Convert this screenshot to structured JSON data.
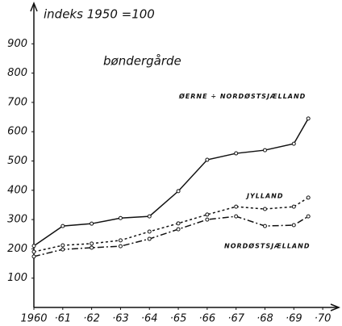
{
  "chart_data": {
    "type": "line",
    "title": "bøndergårde",
    "y_label": "indeks 1950 =100",
    "xlim": [
      1960,
      1970.5
    ],
    "ylim": [
      0,
      1000
    ],
    "xticks": [
      {
        "value": 1960,
        "label": "1960"
      },
      {
        "value": 1961,
        "label": "·61"
      },
      {
        "value": 1962,
        "label": "·62"
      },
      {
        "value": 1963,
        "label": "·63"
      },
      {
        "value": 1964,
        "label": "·64"
      },
      {
        "value": 1965,
        "label": "·65"
      },
      {
        "value": 1966,
        "label": "·66"
      },
      {
        "value": 1967,
        "label": "·67"
      },
      {
        "value": 1968,
        "label": "·68"
      },
      {
        "value": 1969,
        "label": "·69"
      },
      {
        "value": 1970,
        "label": "·70"
      }
    ],
    "yticks": [
      100,
      200,
      300,
      400,
      500,
      600,
      700,
      800,
      900
    ],
    "x": [
      1960,
      1961,
      1962,
      1963,
      1964,
      1965,
      1966,
      1967,
      1968,
      1969,
      1969.5
    ],
    "series": [
      {
        "name": "NORDØSTSJÆLLAND",
        "color": "#111111",
        "dash": "none",
        "values": [
          210,
          278,
          286,
          305,
          311,
          397,
          504,
          526,
          537,
          559,
          645
        ]
      },
      {
        "name": "JYLLAND",
        "color": "#111111",
        "dash": "3 3",
        "values": [
          190,
          212,
          218,
          229,
          259,
          287,
          317,
          344,
          336,
          344,
          375
        ]
      },
      {
        "name": "ØERNE ÷ NORDØSTSJÆLLAND",
        "color": "#111111",
        "dash": "8 3 2 3",
        "values": [
          174,
          198,
          204,
          209,
          234,
          267,
          300,
          311,
          278,
          281,
          311
        ]
      }
    ]
  }
}
